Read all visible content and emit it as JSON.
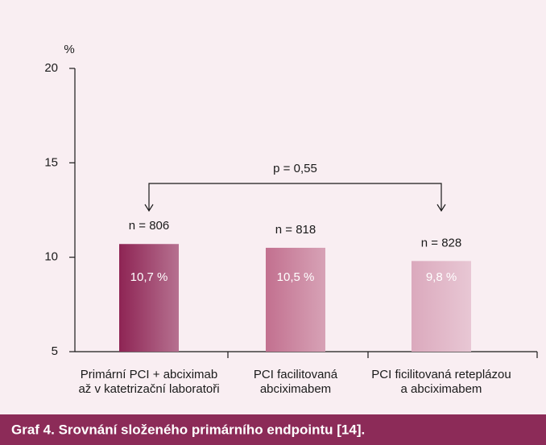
{
  "chart_data": {
    "type": "bar",
    "y_label": "%",
    "categories": [
      "Primární PCI + abciximab\naž v katetrizační laboratoři",
      "PCI facilitovaná\nabciximabem",
      "PCI ficilitovaná reteplázou\na abciximabem"
    ],
    "values": [
      10.7,
      10.5,
      9.8
    ],
    "value_labels": [
      "10,7 %",
      "10,5 %",
      "9,8 %"
    ],
    "colors": [
      "#8e2454",
      "#c2708f",
      "#dba9bd"
    ],
    "n_labels": [
      "n = 806",
      "n = 818",
      "n = 828"
    ],
    "p_label": "p = 0,55",
    "ylim": [
      5,
      20
    ],
    "yticks": [
      5,
      10,
      15,
      20
    ],
    "caption": "Graf 4. Srovnání složeného primárního endpointu [14]."
  }
}
